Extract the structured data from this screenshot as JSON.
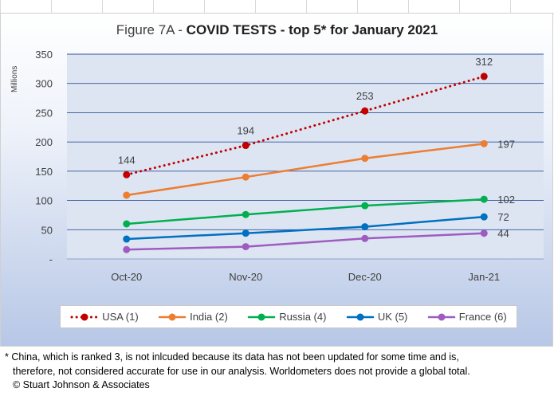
{
  "chart_data": {
    "type": "line",
    "title_prefix": "Figure 7A - ",
    "title_main": "COVID TESTS - top 5* for January 2021",
    "ylabel": "Millions",
    "xlabel": "",
    "categories": [
      "Oct-20",
      "Nov-20",
      "Dec-20",
      "Jan-21"
    ],
    "ylim": [
      0,
      350
    ],
    "yticks": [
      0,
      50,
      100,
      150,
      200,
      250,
      300,
      350
    ],
    "ytick_labels": [
      "-",
      "50",
      "100",
      "150",
      "200",
      "250",
      "300",
      "350"
    ],
    "grid": true,
    "legend_position": "bottom",
    "series": [
      {
        "name": "USA (1)",
        "values": [
          144,
          194,
          253,
          312
        ],
        "color": "#c00000",
        "style": "dotted",
        "labels": [
          "144",
          "194",
          "253",
          "312"
        ],
        "label_position": "above"
      },
      {
        "name": "India (2)",
        "values": [
          109,
          140,
          172,
          197
        ],
        "color": "#ed7d31",
        "style": "solid",
        "labels": [
          "",
          "",
          "",
          "197"
        ],
        "label_position": "right"
      },
      {
        "name": "Russia (4)",
        "values": [
          60,
          76,
          91,
          102
        ],
        "color": "#00b050",
        "style": "solid",
        "labels": [
          "",
          "",
          "",
          "102"
        ],
        "label_position": "right"
      },
      {
        "name": "UK (5)",
        "values": [
          34,
          44,
          55,
          72
        ],
        "color": "#0070c0",
        "style": "solid",
        "labels": [
          "",
          "",
          "",
          "72"
        ],
        "label_position": "right"
      },
      {
        "name": "France (6)",
        "values": [
          16,
          21,
          35,
          44
        ],
        "color": "#9f5cc0",
        "style": "solid",
        "labels": [
          "",
          "",
          "",
          "44"
        ],
        "label_position": "right"
      }
    ]
  },
  "footnote": {
    "line1": "* China, which is ranked 3, is not inlcuded because its data has not been updated for some time and is,",
    "line2": "therefore, not considered accurate for use in our analysis.  Worldometers does not provide a global total.",
    "line3": "© Stuart Johnson & Associates"
  }
}
